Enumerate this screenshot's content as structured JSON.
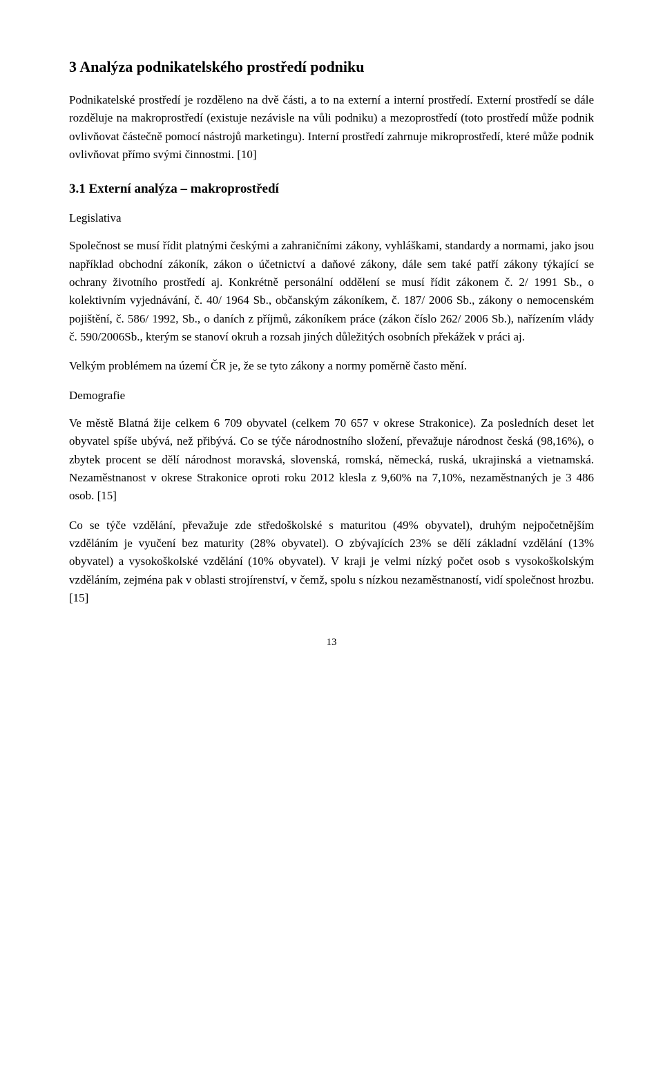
{
  "h1": "3 Analýza podnikatelského prostředí podniku",
  "intro": "Podnikatelské prostředí je rozděleno na dvě části, a to na externí a interní prostředí. Externí prostředí se dále rozděluje na makroprostředí (existuje nezávisle na vůli podniku) a mezoprostředí (toto prostředí může podnik ovlivňovat částečně pomocí nástrojů marketingu). Interní prostředí zahrnuje mikroprostředí, které může podnik ovlivňovat přímo svými činnostmi. [10]",
  "h2": "3.1 Externí analýza – makroprostředí",
  "sub1": "Legislativa",
  "p1": "Společnost se musí řídit platnými českými a zahraničními zákony, vyhláškami, standardy a normami, jako jsou například obchodní zákoník, zákon o účetnictví a daňové zákony, dále sem také patří zákony týkající se ochrany životního prostředí aj. Konkrétně personální oddělení se musí řídit zákonem č. 2/ 1991 Sb., o kolektivním vyjednávání, č. 40/ 1964 Sb., občanským zákoníkem, č. 187/ 2006 Sb., zákony o nemocenském pojištění, č. 586/ 1992, Sb., o daních z příjmů, zákoníkem práce (zákon číslo 262/ 2006 Sb.), nařízením vlády č. 590/2006Sb., kterým se stanoví okruh a rozsah jiných důležitých osobních překážek v práci aj.",
  "p2": "Velkým problémem na území ČR je, že se tyto zákony a normy poměrně často mění.",
  "sub2": "Demografie",
  "p3": "Ve městě Blatná žije celkem 6 709 obyvatel (celkem 70 657 v okrese Strakonice). Za posledních deset let obyvatel spíše ubývá, než přibývá. Co se týče národnostního složení, převažuje národnost česká (98,16%), o zbytek procent se dělí národnost moravská, slovenská, romská, německá, ruská, ukrajinská a vietnamská. Nezaměstnanost v okrese Strakonice oproti roku 2012 klesla z 9,60% na 7,10%, nezaměstnaných je 3 486 osob. [15]",
  "p4": "Co se týče vzdělání, převažuje zde středoškolské s maturitou (49% obyvatel), druhým nejpočetnějším vzděláním je vyučení bez maturity (28% obyvatel). O zbývajících 23% se dělí základní vzdělání (13% obyvatel) a vysokoškolské vzdělání (10% obyvatel). V kraji je velmi nízký počet osob s vysokoškolským vzděláním, zejména pak v oblasti strojírenství, v čemž, spolu s nízkou nezaměstnaností, vidí společnost hrozbu. [15]",
  "pagenum": "13"
}
